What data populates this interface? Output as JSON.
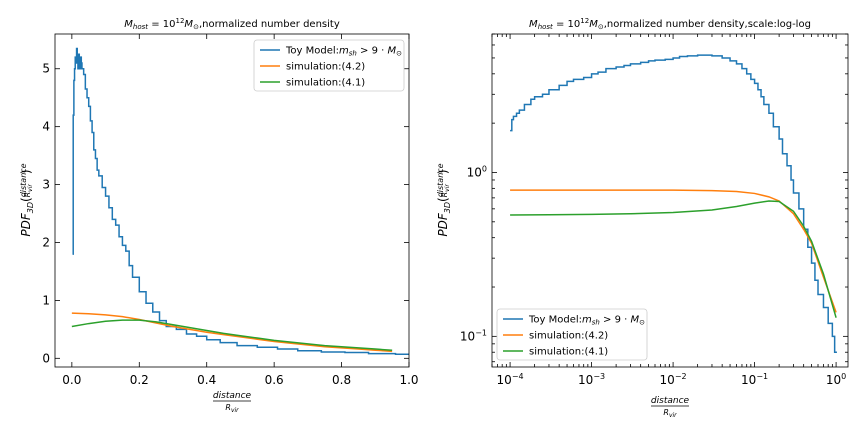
{
  "chart_data": [
    {
      "type": "line",
      "title": "$M_{host}=10^{12}M_{\\odot}$,normalized number density",
      "title_display": "M_host = 10^12 M_⊙ ,normalized number density",
      "xlabel": "distance / R_vir",
      "ylabel": "PDF_3D(distance / R_vir)",
      "x_scale": "linear",
      "y_scale": "linear",
      "xlim": [
        -0.05,
        1.0
      ],
      "ylim": [
        -0.15,
        5.6
      ],
      "xticks": [
        0.0,
        0.2,
        0.4,
        0.6,
        0.8,
        1.0
      ],
      "xtick_labels": [
        "0.0",
        "0.2",
        "0.4",
        "0.6",
        "0.8",
        "1.0"
      ],
      "yticks": [
        0,
        1,
        2,
        3,
        4,
        5
      ],
      "ytick_labels": [
        "0",
        "1",
        "2",
        "3",
        "4",
        "5"
      ],
      "grid": false,
      "legend_placement": "top-right",
      "series": [
        {
          "name": "Toy Model:m_sh > 9 · M_⊙",
          "color": "#1f77b4",
          "style": "step",
          "x": [
            0.002,
            0.004,
            0.006,
            0.008,
            0.01,
            0.012,
            0.014,
            0.016,
            0.018,
            0.02,
            0.022,
            0.024,
            0.026,
            0.028,
            0.03,
            0.035,
            0.04,
            0.045,
            0.05,
            0.055,
            0.06,
            0.065,
            0.07,
            0.075,
            0.08,
            0.09,
            0.1,
            0.11,
            0.12,
            0.13,
            0.14,
            0.15,
            0.16,
            0.17,
            0.18,
            0.2,
            0.22,
            0.24,
            0.26,
            0.28,
            0.31,
            0.34,
            0.37,
            0.4,
            0.44,
            0.49,
            0.55,
            0.61,
            0.67,
            0.74,
            0.81,
            0.88,
            0.96
          ],
          "y": [
            1.8,
            4.2,
            4.8,
            5.0,
            5.2,
            5.1,
            5.35,
            5.2,
            5.0,
            5.25,
            5.15,
            5.0,
            5.2,
            5.1,
            5.0,
            4.9,
            4.65,
            4.5,
            4.35,
            4.1,
            3.9,
            3.6,
            3.45,
            3.25,
            3.15,
            2.95,
            2.8,
            2.6,
            2.4,
            2.3,
            2.1,
            1.95,
            1.85,
            1.6,
            1.4,
            1.15,
            0.95,
            0.8,
            0.65,
            0.55,
            0.5,
            0.42,
            0.38,
            0.32,
            0.27,
            0.22,
            0.19,
            0.16,
            0.13,
            0.11,
            0.1,
            0.08,
            0.07
          ]
        },
        {
          "name": "simulation:(4.2)",
          "color": "#ff7f0e",
          "style": "line",
          "x": [
            0.0,
            0.05,
            0.1,
            0.15,
            0.2,
            0.25,
            0.3,
            0.35,
            0.4,
            0.45,
            0.5,
            0.55,
            0.6,
            0.65,
            0.7,
            0.75,
            0.8,
            0.85,
            0.9,
            0.95
          ],
          "y": [
            0.78,
            0.77,
            0.75,
            0.72,
            0.67,
            0.61,
            0.55,
            0.5,
            0.45,
            0.41,
            0.37,
            0.33,
            0.29,
            0.26,
            0.23,
            0.2,
            0.18,
            0.16,
            0.14,
            0.12
          ]
        },
        {
          "name": "simulation:(4.1)",
          "color": "#2ca02c",
          "style": "line",
          "x": [
            0.0,
            0.05,
            0.1,
            0.15,
            0.2,
            0.25,
            0.3,
            0.35,
            0.4,
            0.45,
            0.5,
            0.55,
            0.6,
            0.65,
            0.7,
            0.75,
            0.8,
            0.85,
            0.9,
            0.95
          ],
          "y": [
            0.55,
            0.6,
            0.64,
            0.66,
            0.66,
            0.63,
            0.58,
            0.53,
            0.48,
            0.43,
            0.39,
            0.35,
            0.31,
            0.28,
            0.25,
            0.22,
            0.2,
            0.18,
            0.16,
            0.14
          ]
        }
      ]
    },
    {
      "type": "line",
      "title": "$M_{host}=10^{12}M_{\\odot}$,normalized number density,scale:log-log",
      "title_display": "M_host = 10^12 M_⊙ ,normalized number density,scale:log-log",
      "xlabel": "distance / R_vir",
      "ylabel": "PDF_3D(distance / R_vir)",
      "x_scale": "log",
      "y_scale": "log",
      "xlim": [
        6e-05,
        1.4
      ],
      "ylim": [
        0.065,
        7.0
      ],
      "xticks": [
        0.0001,
        0.001,
        0.01,
        0.1,
        1
      ],
      "xtick_labels": [
        "10^-4",
        "10^-3",
        "10^-2",
        "10^-1",
        "10^0"
      ],
      "yticks": [
        0.1,
        1
      ],
      "ytick_labels": [
        "10^-1",
        "10^0"
      ],
      "grid": false,
      "legend_placement": "bottom-left",
      "series": [
        {
          "name": "Toy Model:m_sh > 9 · M_⊙",
          "color": "#1f77b4",
          "style": "step",
          "x": [
            0.0001,
            0.000105,
            0.00011,
            0.00012,
            0.00013,
            0.00015,
            0.00018,
            0.0002,
            0.00025,
            0.0003,
            0.0004,
            0.0005,
            0.0006,
            0.0008,
            0.001,
            0.0012,
            0.0015,
            0.002,
            0.0025,
            0.003,
            0.004,
            0.005,
            0.006,
            0.008,
            0.01,
            0.012,
            0.015,
            0.02,
            0.025,
            0.03,
            0.04,
            0.05,
            0.06,
            0.07,
            0.08,
            0.09,
            0.1,
            0.11,
            0.12,
            0.13,
            0.15,
            0.17,
            0.2,
            0.22,
            0.25,
            0.28,
            0.3,
            0.35,
            0.4,
            0.45,
            0.5,
            0.55,
            0.6,
            0.7,
            0.8,
            0.9,
            0.96
          ],
          "y": [
            1.8,
            2.1,
            2.2,
            2.3,
            2.4,
            2.6,
            2.8,
            2.9,
            3.0,
            3.2,
            3.4,
            3.6,
            3.7,
            3.8,
            4.0,
            4.1,
            4.3,
            4.4,
            4.5,
            4.6,
            4.7,
            4.8,
            4.85,
            4.9,
            5.0,
            5.1,
            5.15,
            5.2,
            5.2,
            5.15,
            5.0,
            4.8,
            4.6,
            4.3,
            4.0,
            3.7,
            3.5,
            3.2,
            2.9,
            2.6,
            2.3,
            1.9,
            1.6,
            1.3,
            1.1,
            0.9,
            0.75,
            0.6,
            0.45,
            0.35,
            0.28,
            0.22,
            0.18,
            0.15,
            0.12,
            0.1,
            0.08
          ]
        },
        {
          "name": "simulation:(4.2)",
          "color": "#ff7f0e",
          "style": "line",
          "x": [
            0.0001,
            0.0003,
            0.001,
            0.003,
            0.01,
            0.03,
            0.06,
            0.1,
            0.15,
            0.2,
            0.3,
            0.4,
            0.5,
            0.7,
            1.0
          ],
          "y": [
            0.78,
            0.78,
            0.78,
            0.78,
            0.78,
            0.775,
            0.765,
            0.745,
            0.71,
            0.67,
            0.56,
            0.45,
            0.37,
            0.23,
            0.14
          ]
        },
        {
          "name": "simulation:(4.1)",
          "color": "#2ca02c",
          "style": "line",
          "x": [
            0.0001,
            0.0003,
            0.001,
            0.003,
            0.01,
            0.03,
            0.06,
            0.1,
            0.15,
            0.2,
            0.3,
            0.4,
            0.5,
            0.7,
            1.0
          ],
          "y": [
            0.55,
            0.552,
            0.555,
            0.56,
            0.57,
            0.59,
            0.62,
            0.65,
            0.67,
            0.665,
            0.58,
            0.47,
            0.38,
            0.24,
            0.13
          ]
        }
      ]
    }
  ]
}
